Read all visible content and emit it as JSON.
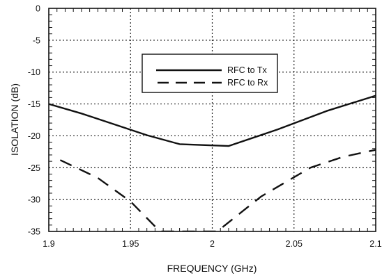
{
  "chart_data": {
    "type": "line",
    "title": "",
    "xlabel": "FREQUENCY (GHz)",
    "ylabel": "ISOLATION (dB)",
    "xlim": [
      1.9,
      2.1
    ],
    "ylim": [
      -35,
      0
    ],
    "xticks": [
      1.9,
      1.95,
      2.0,
      2.05,
      2.1
    ],
    "xtick_labels": [
      "1.9",
      "1.95",
      "2",
      "2.05",
      "2.1"
    ],
    "yticks": [
      0,
      -5,
      -10,
      -15,
      -20,
      -25,
      -30,
      -35
    ],
    "ytick_labels": [
      "0",
      "-5",
      "-10",
      "-15",
      "-20",
      "-25",
      "-30",
      "-35"
    ],
    "grid": true,
    "grid_style": "dotted",
    "legend_position": "upper-center",
    "series": [
      {
        "name": "RFC to Tx",
        "line_style": "solid",
        "color": "#111111",
        "x": [
          1.9,
          1.92,
          1.94,
          1.96,
          1.98,
          2.01,
          2.04,
          2.07,
          2.1
        ],
        "y": [
          -15.0,
          -16.5,
          -18.2,
          -19.9,
          -21.3,
          -21.6,
          -19.0,
          -16.1,
          -13.7
        ]
      },
      {
        "name": "RFC to Rx",
        "line_style": "dashed",
        "color": "#111111",
        "x": [
          1.907,
          1.93,
          1.95,
          1.968,
          2.003,
          2.03,
          2.06,
          2.08,
          2.1
        ],
        "y": [
          -23.8,
          -26.6,
          -30.3,
          -35.0,
          -35.0,
          -29.5,
          -25.0,
          -23.3,
          -22.2
        ]
      }
    ]
  }
}
